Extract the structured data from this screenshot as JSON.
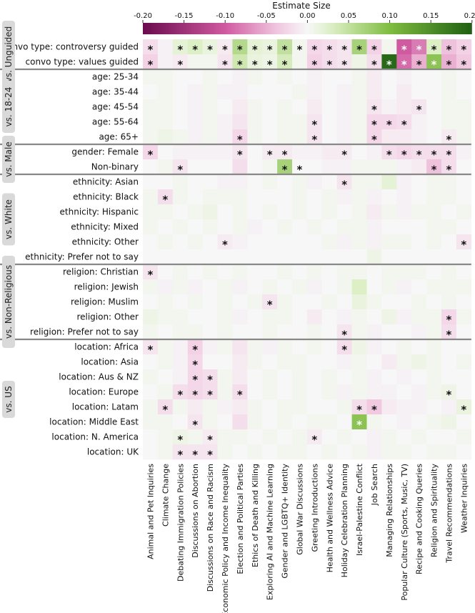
{
  "chart_data": {
    "type": "heatmap",
    "colorbar": {
      "title": "Estimate Size",
      "vmin": -0.2,
      "vmax": 0.2,
      "ticks": [
        "-0.20",
        "-0.15",
        "-0.10",
        "-0.05",
        "0.00",
        "0.05",
        "0.10",
        "0.15",
        "0.20"
      ],
      "colors": {
        "neg_strong": "#6b0a4e",
        "neg_mid": "#d05aa0",
        "neg_light": "#f3d2e6",
        "neutral": "#f7f7f7",
        "pos_light": "#dcefc5",
        "pos_mid": "#7fbc41",
        "pos_strong": "#1f5f12"
      }
    },
    "columns": [
      "Animal and Pet Inquiries",
      "Climate Change",
      "Debating Immigration Policies",
      "Discussions on Abortion",
      "Discussions on Race and Racism",
      "Economic Policy and Income Inequality",
      "Election and Political Parties",
      "Ethics of Death and Killing",
      "Exploring AI and Machine Learning",
      "Gender and LGBTQ+ Identity",
      "Global War Discussions",
      "Greeting Introductions",
      "Health and Wellness Advice",
      "Holiday Celebration Planning",
      "Israel-Palestine Conflict",
      "Job Search",
      "Managing Relationships",
      "Popular Culture (Sports, Music, TV)",
      "Recipe and Cooking Queries",
      "Religion and Spirituality",
      "Travel Recommendations",
      "Weather Inquiries"
    ],
    "rows": [
      "convo type: controversy guided",
      "convo type: values guided",
      "age: 25-34",
      "age: 35-44",
      "age: 45-54",
      "age: 55-64",
      "age: 65+",
      "gender: Female",
      "Non-binary",
      "ethnicity: Asian",
      "ethnicity: Black",
      "ethnicity: Hispanic",
      "ethnicity: Mixed",
      "ethnicity: Other",
      "ethnicity: Prefer not to say",
      "religion: Christian",
      "religion: Jewish",
      "religion: Muslim",
      "religion: Other",
      "religion: Prefer not to say",
      "location: Africa",
      "location: Asia",
      "location: Aus & NZ",
      "location: Europe",
      "location: Latam",
      "location: Middle East",
      "location: N. America",
      "location: UK"
    ],
    "groups": [
      {
        "label": "vs. Unguided",
        "start": 0,
        "end": 1
      },
      {
        "label": "vs. 18-24",
        "start": 2,
        "end": 6
      },
      {
        "label": "vs. Male",
        "start": 7,
        "end": 8
      },
      {
        "label": "vs. White",
        "start": 9,
        "end": 14
      },
      {
        "label": "vs. Non-Religious",
        "start": 15,
        "end": 19
      },
      {
        "label": "vs. US",
        "start": 20,
        "end": 27
      }
    ],
    "values": [
      [
        -0.02,
        -0.005,
        0.02,
        0.03,
        0.015,
        -0.01,
        0.06,
        0.02,
        0.015,
        0.05,
        0.005,
        -0.025,
        -0.02,
        -0.015,
        0.07,
        -0.03,
        0.005,
        -0.1,
        -0.08,
        0.03,
        -0.04,
        -0.03
      ],
      [
        -0.03,
        -0.005,
        -0.01,
        0.005,
        0.005,
        -0.015,
        0.04,
        0.015,
        0.01,
        0.035,
        0.005,
        -0.03,
        -0.02,
        -0.015,
        0.01,
        -0.02,
        0.19,
        -0.09,
        -0.05,
        0.09,
        -0.05,
        -0.035
      ],
      [
        0.005,
        0.005,
        0.0,
        0.0,
        0.005,
        0.0,
        -0.005,
        0.005,
        0.0,
        0.005,
        0.0,
        -0.005,
        0.0,
        0.0,
        0.005,
        -0.01,
        0.0,
        -0.005,
        0.0,
        0.0,
        0.005,
        0.0
      ],
      [
        0.0,
        0.005,
        0.0,
        -0.005,
        0.005,
        -0.005,
        -0.005,
        0.0,
        0.0,
        0.0,
        0.005,
        -0.005,
        0.0,
        -0.005,
        0.005,
        -0.01,
        0.0,
        -0.01,
        0.0,
        0.0,
        0.005,
        0.0
      ],
      [
        0.005,
        0.005,
        0.0,
        -0.005,
        0.005,
        0.0,
        -0.01,
        0.005,
        0.0,
        0.005,
        0.0,
        -0.01,
        0.0,
        -0.005,
        0.005,
        -0.015,
        -0.005,
        -0.01,
        -0.015,
        0.0,
        0.005,
        0.005
      ],
      [
        0.005,
        0.005,
        0.0,
        -0.005,
        0.005,
        -0.005,
        -0.015,
        0.005,
        0.0,
        0.005,
        0.005,
        -0.015,
        0.0,
        -0.005,
        0.005,
        -0.025,
        -0.025,
        -0.02,
        -0.005,
        0.0,
        0.005,
        0.005
      ],
      [
        0.005,
        0.01,
        0.005,
        -0.005,
        0.005,
        -0.005,
        -0.025,
        0.005,
        0.0,
        0.005,
        0.005,
        -0.015,
        0.0,
        -0.005,
        0.005,
        -0.025,
        -0.01,
        -0.01,
        -0.005,
        0.0,
        -0.01,
        0.005
      ],
      [
        -0.025,
        0.0,
        -0.005,
        -0.005,
        -0.005,
        -0.005,
        -0.015,
        0.0,
        -0.01,
        -0.01,
        -0.005,
        -0.005,
        -0.01,
        -0.01,
        0.0,
        -0.005,
        -0.02,
        -0.025,
        -0.02,
        -0.02,
        -0.02,
        -0.005
      ],
      [
        0.0,
        0.005,
        -0.015,
        0.0,
        0.0,
        0.0,
        -0.02,
        0.0,
        0.005,
        0.07,
        0.0,
        0.0,
        -0.005,
        -0.005,
        0.005,
        0.005,
        0.005,
        -0.005,
        -0.01,
        -0.04,
        -0.02,
        0.0
      ],
      [
        0.0,
        0.0,
        0.005,
        0.0,
        0.0,
        -0.005,
        -0.005,
        0.0,
        0.005,
        0.0,
        0.005,
        -0.005,
        0.0,
        -0.015,
        0.005,
        0.005,
        0.02,
        -0.005,
        0.0,
        0.005,
        0.005,
        0.0
      ],
      [
        0.005,
        -0.02,
        0.005,
        0.0,
        0.005,
        0.005,
        0.005,
        0.0,
        0.0,
        0.0,
        0.005,
        0.0,
        0.005,
        -0.005,
        0.005,
        -0.005,
        0.0,
        -0.005,
        0.0,
        0.005,
        0.005,
        0.0
      ],
      [
        0.005,
        0.005,
        0.0,
        0.005,
        0.01,
        0.0,
        0.005,
        0.0,
        0.005,
        0.0,
        0.005,
        0.0,
        0.005,
        0.0,
        0.005,
        -0.01,
        0.005,
        -0.005,
        0.005,
        0.005,
        0.0,
        0.005
      ],
      [
        0.005,
        0.0,
        0.005,
        0.0,
        0.005,
        0.0,
        0.005,
        -0.005,
        0.0,
        0.005,
        0.0,
        0.005,
        0.0,
        0.005,
        0.005,
        -0.005,
        0.0,
        0.0,
        0.0,
        0.005,
        0.005,
        0.0
      ],
      [
        0.0,
        0.005,
        0.0,
        0.005,
        0.0,
        -0.01,
        -0.005,
        0.0,
        0.0,
        0.0,
        0.0,
        0.0,
        0.005,
        -0.005,
        0.005,
        -0.005,
        0.005,
        0.005,
        0.0,
        0.005,
        0.0,
        -0.015
      ],
      [
        0.0,
        0.0,
        0.0,
        0.0,
        0.0,
        0.0,
        0.0,
        0.0,
        0.0,
        0.0,
        0.0,
        0.0,
        0.0,
        0.0,
        0.0,
        0.01,
        0.0,
        0.0,
        0.0,
        0.0,
        0.0,
        0.0
      ],
      [
        -0.015,
        0.0,
        0.005,
        0.0,
        0.005,
        0.0,
        0.005,
        0.0,
        0.0,
        0.005,
        0.0,
        0.005,
        0.0,
        0.005,
        0.005,
        0.0,
        0.005,
        0.005,
        0.005,
        0.0,
        0.005,
        0.0
      ],
      [
        0.005,
        -0.005,
        0.005,
        -0.005,
        0.0,
        0.005,
        -0.005,
        0.0,
        0.005,
        0.0,
        0.005,
        -0.005,
        0.0,
        0.005,
        0.03,
        0.0,
        0.005,
        -0.005,
        0.0,
        0.005,
        0.005,
        0.005
      ],
      [
        0.0,
        0.005,
        0.0,
        0.005,
        0.0,
        0.005,
        0.0,
        0.005,
        -0.015,
        0.005,
        0.0,
        0.0,
        0.005,
        0.0,
        0.015,
        0.005,
        0.0,
        0.0,
        0.005,
        0.0,
        0.005,
        0.0
      ],
      [
        0.01,
        0.005,
        0.005,
        0.0,
        0.0,
        0.005,
        -0.005,
        0.0,
        0.005,
        0.005,
        0.0,
        -0.01,
        0.0,
        -0.005,
        0.005,
        0.0,
        0.01,
        -0.005,
        0.005,
        0.005,
        -0.025,
        0.005
      ],
      [
        0.005,
        0.0,
        0.005,
        0.005,
        0.0,
        0.005,
        0.0,
        0.0,
        0.005,
        0.0,
        0.0,
        0.005,
        0.0,
        -0.015,
        0.005,
        -0.005,
        0.0,
        0.0,
        -0.005,
        0.005,
        -0.02,
        0.0
      ],
      [
        -0.015,
        0.005,
        -0.005,
        -0.03,
        -0.005,
        0.005,
        -0.015,
        0.005,
        -0.005,
        0.005,
        0.0,
        0.005,
        0.0,
        -0.02,
        0.01,
        -0.005,
        0.0,
        0.005,
        0.0,
        0.005,
        0.0,
        0.0
      ],
      [
        0.0,
        0.005,
        -0.005,
        -0.025,
        0.0,
        0.0,
        -0.01,
        0.005,
        0.0,
        0.005,
        0.005,
        0.0,
        0.0,
        -0.005,
        0.005,
        0.0,
        -0.01,
        0.005,
        0.01,
        0.005,
        0.0,
        0.005
      ],
      [
        0.005,
        0.0,
        -0.005,
        -0.025,
        -0.02,
        0.005,
        -0.01,
        0.0,
        0.005,
        0.0,
        0.005,
        0.0,
        0.005,
        0.0,
        0.005,
        -0.005,
        0.0,
        -0.005,
        0.0,
        0.005,
        0.0,
        0.0
      ],
      [
        0.0,
        0.005,
        -0.02,
        -0.025,
        -0.02,
        0.005,
        -0.02,
        0.0,
        0.005,
        0.0,
        0.005,
        0.0,
        0.005,
        -0.005,
        0.005,
        -0.005,
        -0.005,
        0.0,
        -0.005,
        0.005,
        0.01,
        0.0
      ],
      [
        0.005,
        -0.02,
        0.005,
        -0.01,
        0.005,
        -0.005,
        -0.01,
        0.005,
        0.0,
        0.005,
        0.005,
        0.0,
        0.0,
        0.005,
        -0.02,
        -0.035,
        -0.01,
        -0.005,
        -0.005,
        0.0,
        -0.005,
        0.015
      ],
      [
        0.005,
        0.005,
        0.0,
        -0.015,
        0.005,
        0.0,
        -0.02,
        0.005,
        0.0,
        0.005,
        0.0,
        0.005,
        0.005,
        0.0,
        0.09,
        0.005,
        0.0,
        -0.005,
        0.0,
        0.005,
        0.01,
        0.0
      ],
      [
        0.0,
        0.005,
        0.01,
        0.005,
        -0.01,
        0.005,
        0.005,
        0.0,
        0.005,
        0.0,
        0.005,
        -0.01,
        0.0,
        0.005,
        0.0,
        -0.005,
        0.005,
        0.0,
        0.005,
        0.0,
        0.0,
        0.005
      ],
      [
        0.0,
        0.005,
        -0.015,
        -0.015,
        -0.015,
        0.005,
        0.0,
        0.005,
        0.0,
        0.005,
        0.005,
        0.0,
        0.005,
        0.0,
        0.005,
        -0.005,
        0.005,
        0.005,
        0.0,
        0.005,
        0.005,
        0.0
      ]
    ],
    "significance_marker": "*",
    "significant_cells": [
      [
        0,
        0
      ],
      [
        0,
        2
      ],
      [
        0,
        3
      ],
      [
        0,
        4
      ],
      [
        0,
        5
      ],
      [
        0,
        6
      ],
      [
        0,
        7
      ],
      [
        0,
        8
      ],
      [
        0,
        9
      ],
      [
        0,
        10
      ],
      [
        0,
        11
      ],
      [
        0,
        12
      ],
      [
        0,
        13
      ],
      [
        0,
        14
      ],
      [
        0,
        15
      ],
      [
        0,
        17
      ],
      [
        0,
        18
      ],
      [
        0,
        19
      ],
      [
        0,
        20
      ],
      [
        0,
        21
      ],
      [
        1,
        0
      ],
      [
        1,
        2
      ],
      [
        1,
        5
      ],
      [
        1,
        6
      ],
      [
        1,
        7
      ],
      [
        1,
        8
      ],
      [
        1,
        9
      ],
      [
        1,
        11
      ],
      [
        1,
        12
      ],
      [
        1,
        13
      ],
      [
        1,
        15
      ],
      [
        1,
        16
      ],
      [
        1,
        17
      ],
      [
        1,
        18
      ],
      [
        1,
        19
      ],
      [
        1,
        20
      ],
      [
        1,
        21
      ],
      [
        4,
        15
      ],
      [
        4,
        18
      ],
      [
        5,
        11
      ],
      [
        5,
        15
      ],
      [
        5,
        16
      ],
      [
        5,
        17
      ],
      [
        6,
        6
      ],
      [
        6,
        11
      ],
      [
        6,
        15
      ],
      [
        6,
        20
      ],
      [
        7,
        0
      ],
      [
        7,
        6
      ],
      [
        7,
        8
      ],
      [
        7,
        9
      ],
      [
        7,
        13
      ],
      [
        7,
        16
      ],
      [
        7,
        17
      ],
      [
        7,
        18
      ],
      [
        7,
        19
      ],
      [
        7,
        20
      ],
      [
        8,
        2
      ],
      [
        8,
        9
      ],
      [
        8,
        10
      ],
      [
        8,
        19
      ],
      [
        8,
        20
      ],
      [
        9,
        13
      ],
      [
        10,
        1
      ],
      [
        13,
        5
      ],
      [
        13,
        21
      ],
      [
        15,
        0
      ],
      [
        17,
        8
      ],
      [
        18,
        20
      ],
      [
        19,
        13
      ],
      [
        19,
        20
      ],
      [
        20,
        0
      ],
      [
        20,
        3
      ],
      [
        20,
        13
      ],
      [
        21,
        3
      ],
      [
        22,
        3
      ],
      [
        22,
        4
      ],
      [
        23,
        2
      ],
      [
        23,
        3
      ],
      [
        23,
        4
      ],
      [
        23,
        6
      ],
      [
        23,
        20
      ],
      [
        24,
        1
      ],
      [
        24,
        14
      ],
      [
        24,
        15
      ],
      [
        24,
        21
      ],
      [
        25,
        3
      ],
      [
        25,
        14
      ],
      [
        26,
        2
      ],
      [
        26,
        4
      ],
      [
        26,
        11
      ],
      [
        27,
        2
      ],
      [
        27,
        3
      ],
      [
        27,
        4
      ]
    ]
  }
}
